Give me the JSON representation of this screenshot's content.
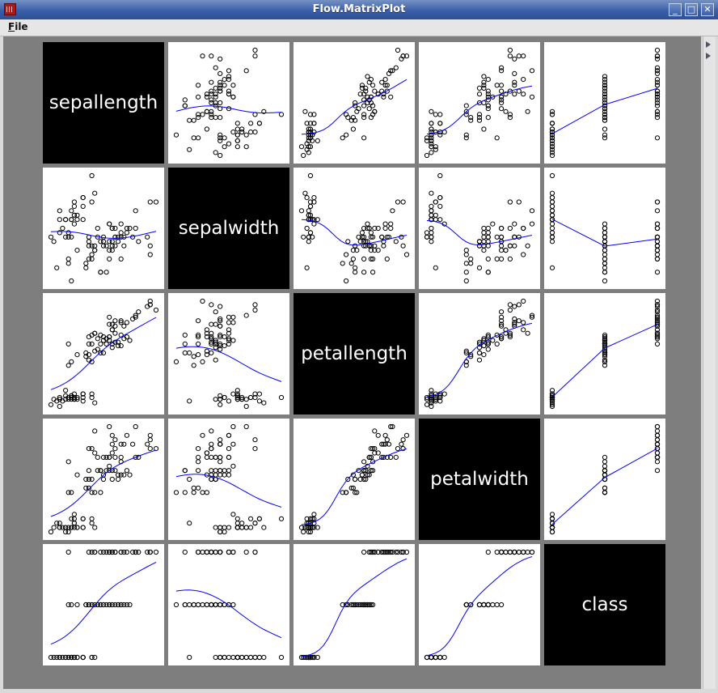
{
  "window": {
    "title": "Flow.MatrixPlot",
    "controls": [
      {
        "name": "minimize",
        "icon": "minimize-icon",
        "glyph": "_"
      },
      {
        "name": "maximize",
        "icon": "maximize-icon",
        "glyph": "□"
      },
      {
        "name": "close",
        "icon": "close-icon",
        "glyph": "✕"
      }
    ]
  },
  "menu": {
    "file": "File"
  },
  "colors": {
    "titlebar": "#3b5ea8",
    "plot_background": "#7e7e7e",
    "diagonal_cell": "#000000",
    "fit_line": "#0000ff",
    "points": "#000000"
  },
  "chart_data": {
    "type": "scatter",
    "kind": "scatter-matrix",
    "variables": [
      "sepallength",
      "sepalwidth",
      "petallength",
      "petalwidth",
      "class"
    ],
    "marker": "open-circle",
    "trend_line": "smoothed",
    "samples": [
      [
        5.1,
        3.5,
        1.4,
        0.2,
        0
      ],
      [
        4.9,
        3.0,
        1.4,
        0.2,
        0
      ],
      [
        4.7,
        3.2,
        1.3,
        0.2,
        0
      ],
      [
        4.6,
        3.1,
        1.5,
        0.2,
        0
      ],
      [
        5.0,
        3.6,
        1.4,
        0.2,
        0
      ],
      [
        5.4,
        3.9,
        1.7,
        0.4,
        0
      ],
      [
        4.6,
        3.4,
        1.4,
        0.3,
        0
      ],
      [
        5.0,
        3.4,
        1.5,
        0.2,
        0
      ],
      [
        4.4,
        2.9,
        1.4,
        0.2,
        0
      ],
      [
        4.9,
        3.1,
        1.5,
        0.1,
        0
      ],
      [
        5.4,
        3.7,
        1.5,
        0.2,
        0
      ],
      [
        4.8,
        3.4,
        1.6,
        0.2,
        0
      ],
      [
        4.8,
        3.0,
        1.4,
        0.1,
        0
      ],
      [
        4.3,
        3.0,
        1.1,
        0.1,
        0
      ],
      [
        5.8,
        4.0,
        1.2,
        0.2,
        0
      ],
      [
        5.7,
        4.4,
        1.5,
        0.4,
        0
      ],
      [
        5.4,
        3.9,
        1.3,
        0.4,
        0
      ],
      [
        5.1,
        3.5,
        1.4,
        0.3,
        0
      ],
      [
        5.7,
        3.8,
        1.7,
        0.3,
        0
      ],
      [
        5.1,
        3.8,
        1.5,
        0.3,
        0
      ],
      [
        5.4,
        3.4,
        1.7,
        0.2,
        0
      ],
      [
        5.1,
        3.7,
        1.5,
        0.4,
        0
      ],
      [
        4.6,
        3.6,
        1.0,
        0.2,
        0
      ],
      [
        5.1,
        3.3,
        1.7,
        0.5,
        0
      ],
      [
        4.8,
        3.4,
        1.9,
        0.2,
        0
      ],
      [
        5.0,
        3.0,
        1.6,
        0.2,
        0
      ],
      [
        5.0,
        3.4,
        1.6,
        0.4,
        0
      ],
      [
        5.2,
        3.5,
        1.5,
        0.2,
        0
      ],
      [
        5.2,
        3.4,
        1.4,
        0.2,
        0
      ],
      [
        4.5,
        2.3,
        1.3,
        0.3,
        0
      ],
      [
        7.0,
        3.2,
        4.7,
        1.4,
        1
      ],
      [
        6.4,
        3.2,
        4.5,
        1.5,
        1
      ],
      [
        6.9,
        3.1,
        4.9,
        1.5,
        1
      ],
      [
        5.5,
        2.3,
        4.0,
        1.3,
        1
      ],
      [
        6.5,
        2.8,
        4.6,
        1.5,
        1
      ],
      [
        5.7,
        2.8,
        4.5,
        1.3,
        1
      ],
      [
        6.3,
        3.3,
        4.7,
        1.6,
        1
      ],
      [
        4.9,
        2.4,
        3.3,
        1.0,
        1
      ],
      [
        6.6,
        2.9,
        4.6,
        1.3,
        1
      ],
      [
        5.2,
        2.7,
        3.9,
        1.4,
        1
      ],
      [
        5.0,
        2.0,
        3.5,
        1.0,
        1
      ],
      [
        5.9,
        3.0,
        4.2,
        1.5,
        1
      ],
      [
        6.0,
        2.2,
        4.0,
        1.0,
        1
      ],
      [
        6.1,
        2.9,
        4.7,
        1.4,
        1
      ],
      [
        5.6,
        2.9,
        3.6,
        1.3,
        1
      ],
      [
        6.7,
        3.1,
        4.4,
        1.4,
        1
      ],
      [
        5.6,
        3.0,
        4.5,
        1.5,
        1
      ],
      [
        5.8,
        2.7,
        4.1,
        1.0,
        1
      ],
      [
        6.2,
        2.2,
        4.5,
        1.5,
        1
      ],
      [
        5.6,
        2.5,
        3.9,
        1.1,
        1
      ],
      [
        5.9,
        3.2,
        4.8,
        1.8,
        1
      ],
      [
        6.1,
        2.8,
        4.0,
        1.3,
        1
      ],
      [
        6.3,
        2.5,
        4.9,
        1.5,
        1
      ],
      [
        6.4,
        2.9,
        4.3,
        1.3,
        1
      ],
      [
        6.6,
        3.0,
        4.4,
        1.4,
        1
      ],
      [
        6.8,
        2.8,
        4.8,
        1.4,
        1
      ],
      [
        6.7,
        3.0,
        5.0,
        1.7,
        1
      ],
      [
        6.0,
        2.9,
        4.5,
        1.5,
        1
      ],
      [
        5.7,
        2.6,
        3.5,
        1.0,
        1
      ],
      [
        5.5,
        2.4,
        3.8,
        1.1,
        1
      ],
      [
        6.3,
        3.3,
        6.0,
        2.5,
        2
      ],
      [
        5.8,
        2.7,
        5.1,
        1.9,
        2
      ],
      [
        7.1,
        3.0,
        5.9,
        2.1,
        2
      ],
      [
        6.3,
        2.9,
        5.6,
        1.8,
        2
      ],
      [
        6.5,
        3.0,
        5.8,
        2.2,
        2
      ],
      [
        7.6,
        3.0,
        6.6,
        2.1,
        2
      ],
      [
        4.9,
        2.5,
        4.5,
        1.7,
        2
      ],
      [
        7.3,
        2.9,
        6.3,
        1.8,
        2
      ],
      [
        6.7,
        2.5,
        5.8,
        1.8,
        2
      ],
      [
        7.2,
        3.6,
        6.1,
        2.5,
        2
      ],
      [
        6.5,
        3.2,
        5.1,
        2.0,
        2
      ],
      [
        6.4,
        2.7,
        5.3,
        1.9,
        2
      ],
      [
        6.8,
        3.0,
        5.5,
        2.1,
        2
      ],
      [
        5.7,
        2.5,
        5.0,
        2.0,
        2
      ],
      [
        5.8,
        2.8,
        5.1,
        2.4,
        2
      ],
      [
        6.4,
        3.2,
        5.3,
        2.3,
        2
      ],
      [
        6.5,
        3.0,
        5.5,
        1.8,
        2
      ],
      [
        7.7,
        3.8,
        6.7,
        2.2,
        2
      ],
      [
        7.7,
        2.6,
        6.9,
        2.3,
        2
      ],
      [
        6.0,
        2.2,
        5.0,
        1.5,
        2
      ],
      [
        6.9,
        3.2,
        5.7,
        2.3,
        2
      ],
      [
        5.6,
        2.8,
        4.9,
        2.0,
        2
      ],
      [
        7.7,
        2.8,
        6.7,
        2.0,
        2
      ],
      [
        6.3,
        2.7,
        4.9,
        1.8,
        2
      ],
      [
        6.7,
        3.3,
        5.7,
        2.1,
        2
      ],
      [
        7.2,
        3.2,
        6.0,
        1.8,
        2
      ],
      [
        6.2,
        2.8,
        4.8,
        1.8,
        2
      ],
      [
        6.1,
        3.0,
        4.9,
        1.8,
        2
      ],
      [
        6.4,
        2.8,
        5.6,
        2.1,
        2
      ],
      [
        7.9,
        3.8,
        6.4,
        2.0,
        2
      ]
    ]
  }
}
